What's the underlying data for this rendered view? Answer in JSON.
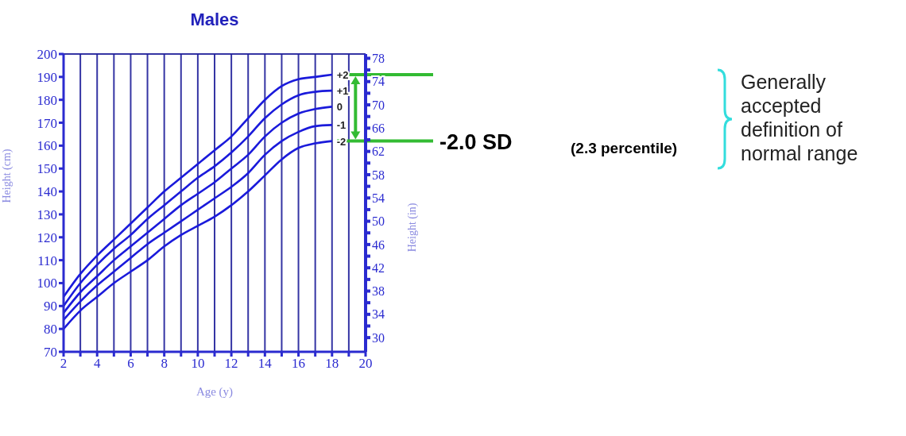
{
  "chart_data": {
    "type": "line",
    "title": "Males",
    "xlabel": "Age (y)",
    "ylabel": "Height (cm)",
    "y2label": "Height (in)",
    "x": [
      2,
      3,
      4,
      5,
      6,
      7,
      8,
      9,
      10,
      11,
      12,
      13,
      14,
      15,
      16,
      17,
      18
    ],
    "series": [
      {
        "name": "+2",
        "color": "#1a1adb",
        "values": [
          94,
          104,
          112,
          119,
          126,
          133,
          140,
          146,
          152,
          158,
          164,
          172,
          180,
          186,
          189,
          190,
          191
        ]
      },
      {
        "name": "+1",
        "color": "#1a1adb",
        "values": [
          90,
          100,
          108,
          115,
          121,
          128,
          134,
          140,
          146,
          151,
          157,
          164,
          172,
          178,
          182,
          183.5,
          184
        ]
      },
      {
        "name": "0",
        "color": "#1a1adb",
        "values": [
          87,
          96,
          103,
          110,
          116,
          122,
          128,
          134,
          139,
          144,
          150,
          156,
          164,
          170,
          174,
          176,
          177
        ]
      },
      {
        "name": "-1",
        "color": "#1a1adb",
        "values": [
          84,
          92,
          99,
          105,
          111,
          117,
          122,
          127,
          132,
          137,
          142,
          148,
          156,
          162,
          166,
          168.5,
          169
        ]
      },
      {
        "name": "-2",
        "color": "#1a1adb",
        "values": [
          80,
          88,
          94,
          100,
          105,
          110,
          116,
          121,
          125,
          129,
          134,
          140,
          147,
          154,
          159,
          161,
          162
        ]
      }
    ],
    "xlim": [
      2,
      20
    ],
    "xticks": [
      2,
      {
        "value": 3,
        "label": null
      },
      4,
      {
        "value": 5,
        "label": null
      },
      6,
      {
        "value": 7,
        "label": null
      },
      8,
      {
        "value": 9,
        "label": null
      },
      10,
      {
        "value": 11,
        "label": null
      },
      12,
      {
        "value": 13,
        "label": null
      },
      14,
      {
        "value": 15,
        "label": null
      },
      16,
      {
        "value": 17,
        "label": null
      },
      18,
      {
        "value": 19,
        "label": null
      },
      20
    ],
    "ylim": [
      70,
      200
    ],
    "yticks": [
      70,
      80,
      90,
      100,
      110,
      120,
      130,
      140,
      150,
      160,
      170,
      180,
      190,
      200
    ],
    "y2lim": [
      27.56,
      78.74
    ],
    "y2ticks": [
      30,
      {
        "value": 32,
        "label": null
      },
      34,
      {
        "value": 36,
        "label": null
      },
      38,
      {
        "value": 40,
        "label": null
      },
      42,
      {
        "value": 44,
        "label": null
      },
      46,
      {
        "value": 48,
        "label": null
      },
      50,
      {
        "value": 52,
        "label": null
      },
      54,
      {
        "value": 56,
        "label": null
      },
      58,
      {
        "value": 60,
        "label": null
      },
      62,
      {
        "value": 64,
        "label": null
      },
      66,
      {
        "value": 68,
        "label": null
      },
      70,
      {
        "value": 72,
        "label": null
      },
      74,
      {
        "value": 76,
        "label": null
      },
      78
    ],
    "grid": true,
    "legend": false,
    "marker": "none",
    "line_style": "solid",
    "ref_lines": [
      {
        "axis": "y",
        "value": 191,
        "color": "#33bb33"
      },
      {
        "axis": "y",
        "value": 162,
        "color": "#33bb33"
      }
    ],
    "annotations": [
      "-2.0 SD",
      "(2.3 percentile)",
      "Generally accepted definition of normal range"
    ]
  }
}
